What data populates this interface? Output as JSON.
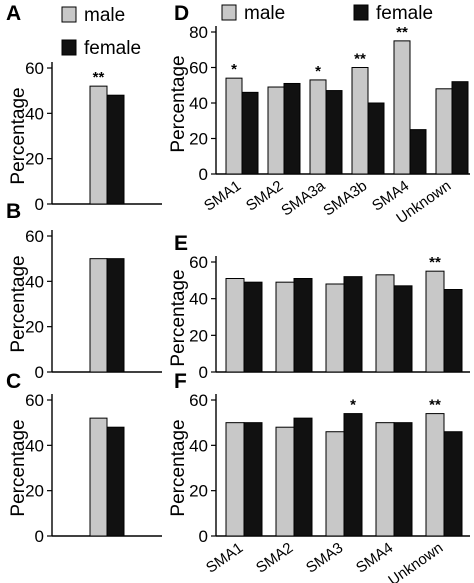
{
  "colors": {
    "male": "#c8c8c8",
    "female": "#111111",
    "axis": "#000000"
  },
  "legend": {
    "male": "male",
    "female": "female"
  },
  "chart_data": [
    {
      "panel": "A",
      "type": "bar",
      "ylabel": "Percentage",
      "yticks": [
        "0",
        "20",
        "40",
        "60"
      ],
      "ylim": [
        0,
        60
      ],
      "legend_shown": true,
      "categories": [
        ""
      ],
      "series": [
        {
          "name": "male",
          "values": [
            52
          ]
        },
        {
          "name": "female",
          "values": [
            48
          ]
        }
      ],
      "annotations": [
        {
          "text": "**",
          "category": 0,
          "series": 0
        }
      ]
    },
    {
      "panel": "B",
      "type": "bar",
      "ylabel": "Percentage",
      "yticks": [
        "0",
        "20",
        "40",
        "60"
      ],
      "ylim": [
        0,
        60
      ],
      "categories": [
        ""
      ],
      "series": [
        {
          "name": "male",
          "values": [
            50
          ]
        },
        {
          "name": "female",
          "values": [
            50
          ]
        }
      ],
      "annotations": []
    },
    {
      "panel": "C",
      "type": "bar",
      "ylabel": "Percentage",
      "yticks": [
        "0",
        "20",
        "40",
        "60"
      ],
      "ylim": [
        0,
        60
      ],
      "categories": [
        ""
      ],
      "series": [
        {
          "name": "male",
          "values": [
            52
          ]
        },
        {
          "name": "female",
          "values": [
            48
          ]
        }
      ],
      "annotations": []
    },
    {
      "panel": "D",
      "type": "bar",
      "ylabel": "Percentage",
      "yticks": [
        "0",
        "20",
        "40",
        "60",
        "80"
      ],
      "ylim": [
        0,
        80
      ],
      "legend_shown": true,
      "categories": [
        "SMA1",
        "SMA2",
        "SMA3a",
        "SMA3b",
        "SMA4",
        "Unknown"
      ],
      "series": [
        {
          "name": "male",
          "values": [
            54,
            49,
            53,
            60,
            75,
            48
          ]
        },
        {
          "name": "female",
          "values": [
            46,
            51,
            47,
            40,
            25,
            52
          ]
        }
      ],
      "annotations": [
        {
          "text": "*",
          "category": 0,
          "series": 0
        },
        {
          "text": "*",
          "category": 2,
          "series": 0
        },
        {
          "text": "**",
          "category": 3,
          "series": 0
        },
        {
          "text": "**",
          "category": 4,
          "series": 0
        }
      ]
    },
    {
      "panel": "E",
      "type": "bar",
      "ylabel": "Percentage",
      "yticks": [
        "0",
        "20",
        "40",
        "60"
      ],
      "ylim": [
        0,
        60
      ],
      "categories": [
        "",
        "",
        "",
        "",
        ""
      ],
      "series": [
        {
          "name": "male",
          "values": [
            51,
            49,
            48,
            53,
            55
          ]
        },
        {
          "name": "female",
          "values": [
            49,
            51,
            52,
            47,
            45
          ]
        }
      ],
      "annotations": [
        {
          "text": "**",
          "category": 4,
          "series": 0
        }
      ]
    },
    {
      "panel": "F",
      "type": "bar",
      "ylabel": "Percentage",
      "yticks": [
        "0",
        "20",
        "40",
        "60"
      ],
      "ylim": [
        0,
        60
      ],
      "categories": [
        "SMA1",
        "SMA2",
        "SMA3",
        "SMA4",
        "Unknown"
      ],
      "series": [
        {
          "name": "male",
          "values": [
            50,
            48,
            46,
            50,
            54
          ]
        },
        {
          "name": "female",
          "values": [
            50,
            52,
            54,
            50,
            46
          ]
        }
      ],
      "annotations": [
        {
          "text": "*",
          "category": 2,
          "series": 1
        },
        {
          "text": "**",
          "category": 4,
          "series": 0
        }
      ]
    }
  ]
}
